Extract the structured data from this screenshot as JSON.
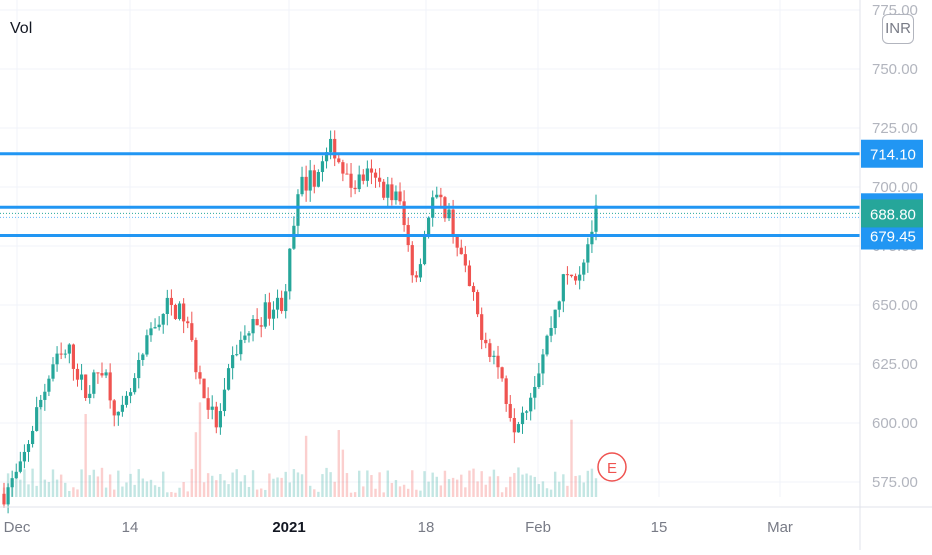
{
  "chart_data": {
    "type": "candlestick",
    "title": "",
    "xlabel": "",
    "ylabel": "",
    "ylim": [
      566,
      776
    ],
    "y_ticks": [
      "575.00",
      "600.00",
      "625.00",
      "650.00",
      "675.00",
      "700.00",
      "725.00",
      "750.00",
      "775.00"
    ],
    "x_ticks": [
      {
        "label": "Dec",
        "bold": false
      },
      {
        "label": "14",
        "bold": false
      },
      {
        "label": "2021",
        "bold": true
      },
      {
        "label": "18",
        "bold": false
      },
      {
        "label": "Feb",
        "bold": false
      },
      {
        "label": "15",
        "bold": false
      },
      {
        "label": "Mar",
        "bold": false
      }
    ],
    "grid": true,
    "volume_label": "Vol",
    "currency": "INR",
    "up_color": "#26a69a",
    "down_color": "#ef5350",
    "line_color": "#2196f3",
    "last_price_color": "#26a69a",
    "horizontal_lines": [
      {
        "value": 714.1,
        "label": "714.10"
      },
      {
        "value": 691.4,
        "label": "691.40"
      },
      {
        "value": 679.45,
        "label": "679.45"
      }
    ],
    "last_price": {
      "value": 688.8,
      "label": "688.80"
    },
    "event_marker": {
      "label": "E"
    },
    "price_path": [
      570,
      580,
      605,
      625,
      630,
      612,
      625,
      600,
      618,
      640,
      650,
      645,
      615,
      598,
      630,
      640,
      648,
      652,
      700,
      705,
      718,
      700,
      705,
      700,
      695,
      660,
      695,
      690,
      665,
      640,
      625,
      600,
      612,
      635,
      660,
      665,
      688
    ]
  }
}
